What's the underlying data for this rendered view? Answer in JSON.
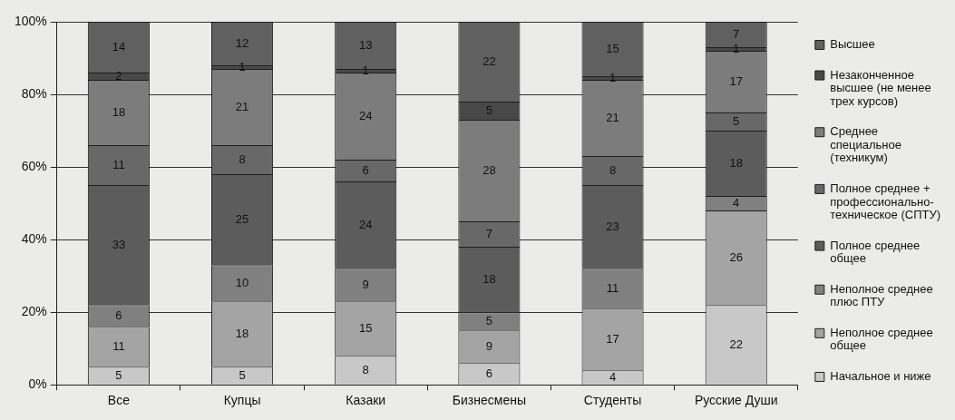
{
  "chart_data": {
    "type": "bar",
    "stacked": true,
    "categories": [
      "Все",
      "Купцы",
      "Казаки",
      "Бизнесмены",
      "Студенты",
      "Русские Души"
    ],
    "series": [
      {
        "name": "Начальное и ниже",
        "color": "#c8c8c8",
        "values": [
          5,
          5,
          8,
          6,
          4,
          22
        ]
      },
      {
        "name": "Неполное среднее общее",
        "color": "#a4a4a4",
        "values": [
          11,
          18,
          15,
          9,
          17,
          26
        ]
      },
      {
        "name": "Неполное среднее плюс ПТУ",
        "color": "#808080",
        "values": [
          6,
          10,
          9,
          5,
          11,
          4
        ]
      },
      {
        "name": "Полное среднее общее",
        "color": "#5c5c5c",
        "values": [
          33,
          25,
          24,
          18,
          23,
          18
        ]
      },
      {
        "name": "Полное среднее + профессионально-техническое (СПТУ)",
        "color": "#686868",
        "values": [
          11,
          8,
          6,
          7,
          8,
          5
        ]
      },
      {
        "name": "Среднее специальное (техникум)",
        "color": "#7c7c7c",
        "values": [
          18,
          21,
          24,
          28,
          21,
          17
        ]
      },
      {
        "name": "Незаконченное высшее (не менее трех курсов)",
        "color": "#484848",
        "values": [
          2,
          1,
          1,
          5,
          1,
          1
        ]
      },
      {
        "name": "Высшее",
        "color": "#606060",
        "values": [
          14,
          12,
          13,
          22,
          15,
          7
        ]
      }
    ],
    "ylim": [
      0,
      100
    ],
    "yticks": [
      {
        "value": 0,
        "label": "0%"
      },
      {
        "value": 20,
        "label": "20%"
      },
      {
        "value": 40,
        "label": "40%"
      },
      {
        "value": 60,
        "label": "60%"
      },
      {
        "value": 80,
        "label": "80%"
      },
      {
        "value": 100,
        "label": "100%"
      }
    ],
    "grid": "y",
    "legend": "right",
    "data_labels": true
  }
}
